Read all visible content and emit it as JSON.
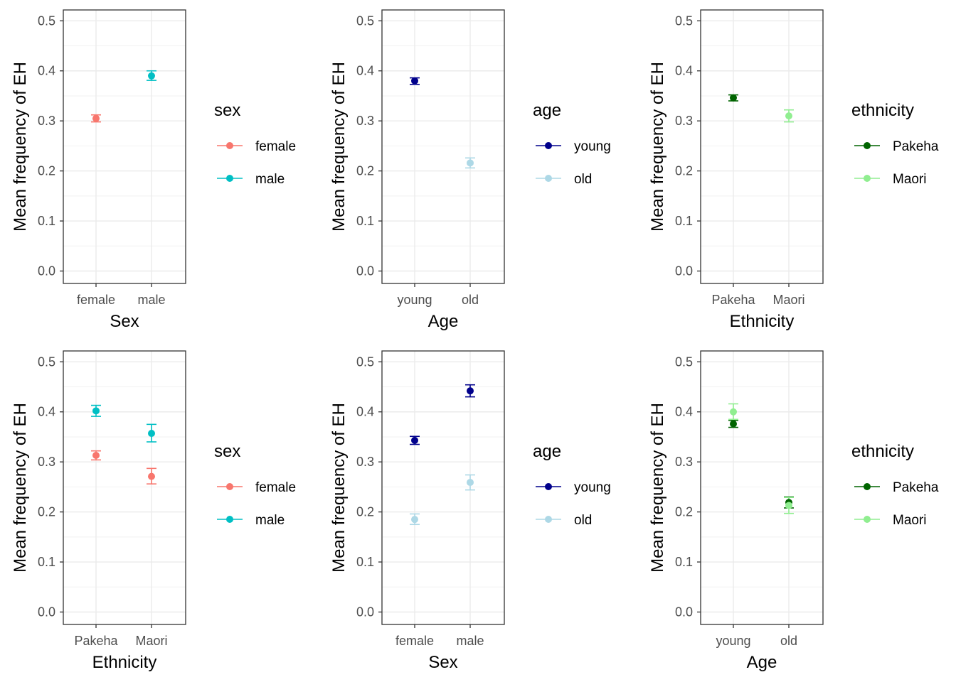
{
  "chart_data": [
    {
      "type": "scatter",
      "xlabel": "Sex",
      "ylabel": "Mean frequency of EH",
      "ylim": [
        0,
        0.5
      ],
      "yticks": [
        "0.0",
        "0.1",
        "0.2",
        "0.3",
        "0.4",
        "0.5"
      ],
      "categories": [
        "female",
        "male"
      ],
      "grid": true,
      "legend": {
        "title": "sex",
        "position": "right"
      },
      "series": [
        {
          "name": "female",
          "color": "#F8766D",
          "points": [
            {
              "x": "female",
              "y": 0.305,
              "ymin": 0.298,
              "ymax": 0.312
            }
          ]
        },
        {
          "name": "male",
          "color": "#00BFC4",
          "points": [
            {
              "x": "male",
              "y": 0.39,
              "ymin": 0.381,
              "ymax": 0.4
            }
          ]
        }
      ]
    },
    {
      "type": "scatter",
      "xlabel": "Age",
      "ylabel": "Mean frequency of EH",
      "ylim": [
        0,
        0.5
      ],
      "yticks": [
        "0.0",
        "0.1",
        "0.2",
        "0.3",
        "0.4",
        "0.5"
      ],
      "categories": [
        "young",
        "old"
      ],
      "grid": true,
      "legend": {
        "title": "age",
        "position": "right"
      },
      "series": [
        {
          "name": "young",
          "color": "#00008B",
          "points": [
            {
              "x": "young",
              "y": 0.38,
              "ymin": 0.373,
              "ymax": 0.386
            }
          ]
        },
        {
          "name": "old",
          "color": "#ADD8E6",
          "points": [
            {
              "x": "old",
              "y": 0.216,
              "ymin": 0.206,
              "ymax": 0.226
            }
          ]
        }
      ]
    },
    {
      "type": "scatter",
      "xlabel": "Ethnicity",
      "ylabel": "Mean frequency of EH",
      "ylim": [
        0,
        0.5
      ],
      "yticks": [
        "0.0",
        "0.1",
        "0.2",
        "0.3",
        "0.4",
        "0.5"
      ],
      "categories": [
        "Pakeha",
        "Maori"
      ],
      "grid": true,
      "legend": {
        "title": "ethnicity",
        "position": "right"
      },
      "series": [
        {
          "name": "Pakeha",
          "color": "#006400",
          "points": [
            {
              "x": "Pakeha",
              "y": 0.346,
              "ymin": 0.34,
              "ymax": 0.352
            }
          ]
        },
        {
          "name": "Maori",
          "color": "#90EE90",
          "points": [
            {
              "x": "Maori",
              "y": 0.31,
              "ymin": 0.298,
              "ymax": 0.322
            }
          ]
        }
      ]
    },
    {
      "type": "scatter",
      "xlabel": "Ethnicity",
      "ylabel": "Mean frequency of EH",
      "ylim": [
        0,
        0.5
      ],
      "yticks": [
        "0.0",
        "0.1",
        "0.2",
        "0.3",
        "0.4",
        "0.5"
      ],
      "categories": [
        "Pakeha",
        "Maori"
      ],
      "grid": true,
      "legend": {
        "title": "sex",
        "position": "right"
      },
      "series": [
        {
          "name": "female",
          "color": "#F8766D",
          "points": [
            {
              "x": "Pakeha",
              "y": 0.313,
              "ymin": 0.304,
              "ymax": 0.322
            },
            {
              "x": "Maori",
              "y": 0.271,
              "ymin": 0.256,
              "ymax": 0.287
            }
          ]
        },
        {
          "name": "male",
          "color": "#00BFC4",
          "points": [
            {
              "x": "Pakeha",
              "y": 0.402,
              "ymin": 0.391,
              "ymax": 0.413
            },
            {
              "x": "Maori",
              "y": 0.357,
              "ymin": 0.34,
              "ymax": 0.375
            }
          ]
        }
      ]
    },
    {
      "type": "scatter",
      "xlabel": "Sex",
      "ylabel": "Mean frequency of EH",
      "ylim": [
        0,
        0.5
      ],
      "yticks": [
        "0.0",
        "0.1",
        "0.2",
        "0.3",
        "0.4",
        "0.5"
      ],
      "categories": [
        "female",
        "male"
      ],
      "grid": true,
      "legend": {
        "title": "age",
        "position": "right"
      },
      "series": [
        {
          "name": "young",
          "color": "#00008B",
          "points": [
            {
              "x": "female",
              "y": 0.343,
              "ymin": 0.335,
              "ymax": 0.351
            },
            {
              "x": "male",
              "y": 0.442,
              "ymin": 0.43,
              "ymax": 0.454
            }
          ]
        },
        {
          "name": "old",
          "color": "#ADD8E6",
          "points": [
            {
              "x": "female",
              "y": 0.185,
              "ymin": 0.175,
              "ymax": 0.196
            },
            {
              "x": "male",
              "y": 0.259,
              "ymin": 0.244,
              "ymax": 0.274
            }
          ]
        }
      ]
    },
    {
      "type": "scatter",
      "xlabel": "Age",
      "ylabel": "Mean frequency of EH",
      "ylim": [
        0,
        0.5
      ],
      "yticks": [
        "0.0",
        "0.1",
        "0.2",
        "0.3",
        "0.4",
        "0.5"
      ],
      "categories": [
        "young",
        "old"
      ],
      "grid": true,
      "legend": {
        "title": "ethnicity",
        "position": "right"
      },
      "series": [
        {
          "name": "Pakeha",
          "color": "#006400",
          "points": [
            {
              "x": "young",
              "y": 0.376,
              "ymin": 0.369,
              "ymax": 0.383
            },
            {
              "x": "old",
              "y": 0.219,
              "ymin": 0.208,
              "ymax": 0.23
            }
          ]
        },
        {
          "name": "Maori",
          "color": "#90EE90",
          "points": [
            {
              "x": "young",
              "y": 0.4,
              "ymin": 0.385,
              "ymax": 0.416
            },
            {
              "x": "old",
              "y": 0.213,
              "ymin": 0.197,
              "ymax": 0.229
            }
          ]
        }
      ]
    }
  ]
}
